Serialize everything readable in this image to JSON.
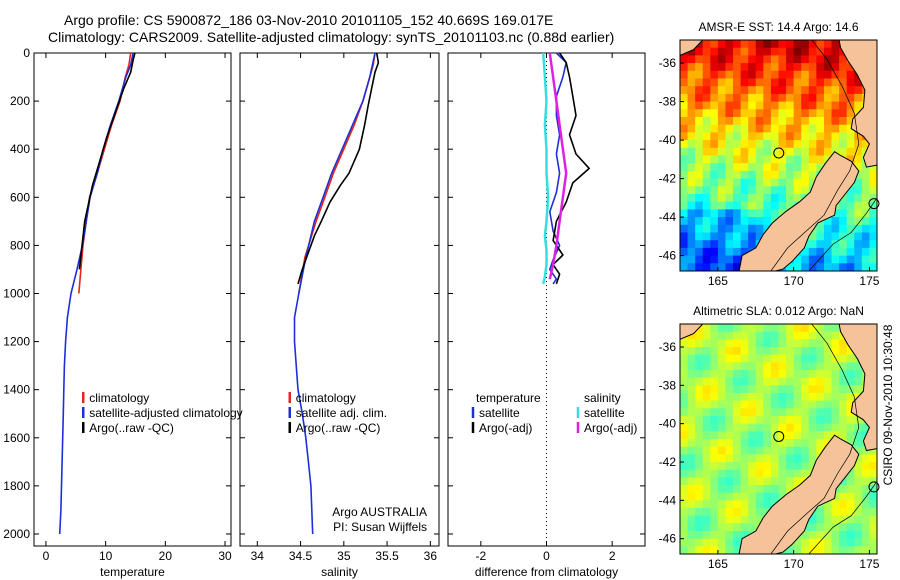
{
  "header": {
    "line1": "Argo profile: CS 5900872_186 03-Nov-2010 20101105_152 40.669S 169.017E",
    "line2": "Climatology: CARS2009. Satellite-adjusted climatology: synTS_20101103.nc (0.88d earlier)"
  },
  "stamp": "CSIRO 09-Nov-2010 10:30:48",
  "colors": {
    "climatology": "#e8241c",
    "satellite": "#1d2fd8",
    "argo": "#000000",
    "sat_salinity": "#33e0e0",
    "argo_salinity": "#e020e0",
    "land": "#f5c29a",
    "coast": "#000000"
  },
  "chart_data": [
    {
      "type": "line",
      "id": "temperature",
      "xlabel": "temperature",
      "ylabel": "",
      "xlim": [
        -2,
        31
      ],
      "ylim": [
        2050,
        0
      ],
      "xticks": [
        0,
        10,
        20,
        30
      ],
      "yticks": [
        0,
        200,
        400,
        600,
        800,
        1000,
        1200,
        1400,
        1600,
        1800,
        2000
      ],
      "legend": [
        "climatology",
        "satellite-adjusted climatology",
        "Argo(..raw -QC)"
      ],
      "series": [
        {
          "name": "climatology",
          "color": "#e8241c",
          "x": [
            14.2,
            13.9,
            13.3,
            12.4,
            11.0,
            9.8,
            8.6,
            7.3,
            6.2,
            5.5
          ],
          "y": [
            0,
            50,
            100,
            200,
            300,
            400,
            500,
            600,
            800,
            1000
          ]
        },
        {
          "name": "satellite-adjusted climatology",
          "color": "#1d2fd8",
          "x": [
            14.6,
            14.2,
            13.4,
            12.2,
            10.8,
            9.6,
            8.6,
            7.4,
            6.1,
            5.2,
            4.2,
            3.6,
            3.3,
            3.1,
            3.0,
            2.9,
            2.8,
            2.7,
            2.6,
            2.5,
            2.4,
            2.3
          ],
          "y": [
            0,
            50,
            100,
            200,
            300,
            400,
            500,
            600,
            800,
            900,
            1000,
            1100,
            1200,
            1300,
            1400,
            1500,
            1600,
            1700,
            1800,
            1900,
            1950,
            2000
          ]
        },
        {
          "name": "Argo(..raw -QC)",
          "color": "#000000",
          "x": [
            14.9,
            14.6,
            14.2,
            13.0,
            11.6,
            10.2,
            9.0,
            7.8,
            6.5,
            5.6
          ],
          "y": [
            0,
            30,
            80,
            150,
            250,
            350,
            450,
            550,
            700,
            900
          ]
        }
      ]
    },
    {
      "type": "line",
      "id": "salinity",
      "xlabel": "salinity",
      "ylabel": "",
      "xlim": [
        33.8,
        36.1
      ],
      "ylim": [
        2050,
        0
      ],
      "xticks": [
        34,
        34.5,
        35,
        35.5,
        36
      ],
      "legend": [
        "climatology",
        "satellite adj. clim.",
        "Argo(..raw -QC)"
      ],
      "annotation": [
        "Argo AUSTRALIA",
        "PI: Susan Wijffels"
      ],
      "series": [
        {
          "name": "climatology",
          "color": "#e8241c",
          "x": [
            35.36,
            35.34,
            35.3,
            35.22,
            35.12,
            35.0,
            34.88,
            34.78,
            34.68,
            34.55,
            34.48
          ],
          "y": [
            0,
            50,
            100,
            200,
            300,
            400,
            500,
            600,
            700,
            850,
            1000
          ]
        },
        {
          "name": "satellite adj. clim.",
          "color": "#1d2fd8",
          "x": [
            35.36,
            35.33,
            35.3,
            35.22,
            35.1,
            34.98,
            34.86,
            34.76,
            34.66,
            34.56,
            34.48,
            34.43,
            34.43,
            34.47,
            34.52,
            34.56,
            34.59,
            34.62,
            34.64
          ],
          "y": [
            0,
            50,
            100,
            200,
            300,
            400,
            500,
            600,
            700,
            850,
            1000,
            1100,
            1200,
            1400,
            1500,
            1600,
            1700,
            1800,
            2000
          ]
        },
        {
          "name": "Argo(..raw -QC)",
          "color": "#000000",
          "x": [
            35.38,
            35.4,
            35.36,
            35.32,
            35.28,
            35.24,
            35.18,
            35.06,
            34.96,
            34.84,
            34.74,
            34.66,
            34.6,
            34.52,
            34.47
          ],
          "y": [
            0,
            40,
            80,
            150,
            220,
            300,
            400,
            500,
            550,
            620,
            700,
            760,
            820,
            900,
            960
          ]
        }
      ]
    },
    {
      "type": "line",
      "id": "difference",
      "xlabel": "difference from climatology",
      "ylabel": "",
      "xlim": [
        -3,
        3
      ],
      "ylim": [
        2050,
        0
      ],
      "xticks": [
        -2,
        0,
        2
      ],
      "legend_temperature": [
        "temperature",
        "satellite",
        "Argo(-adj)"
      ],
      "legend_salinity": [
        "salinity",
        "satellite",
        "Argo(-adj)"
      ],
      "series": [
        {
          "name": "temperature satellite",
          "color": "#1d2fd8",
          "x": [
            0.3,
            0.6,
            0.5,
            0.3,
            0.3,
            0.4,
            0.3,
            0.4,
            0.3,
            0.1,
            0.2,
            0.4,
            0.2,
            0.1,
            0.3,
            0.2
          ],
          "y": [
            0,
            40,
            100,
            180,
            260,
            340,
            420,
            500,
            580,
            660,
            740,
            800,
            860,
            900,
            940,
            960
          ]
        },
        {
          "name": "temperature Argo(-adj)",
          "color": "#000000",
          "x": [
            0.4,
            0.6,
            0.7,
            0.8,
            0.9,
            0.7,
            0.9,
            1.3,
            0.8,
            0.6,
            0.3,
            0.2,
            0.5,
            0.2,
            0.4,
            0.3
          ],
          "y": [
            0,
            40,
            100,
            180,
            260,
            340,
            420,
            480,
            540,
            620,
            700,
            780,
            840,
            880,
            920,
            960
          ]
        },
        {
          "name": "salinity satellite",
          "color": "#33e0e0",
          "x": [
            -0.1,
            -0.05,
            0.0,
            -0.05,
            0.0,
            0.0,
            0.05,
            0.0,
            -0.05,
            0.0,
            0.0,
            -0.05,
            -0.1
          ],
          "y": [
            0,
            100,
            200,
            300,
            400,
            500,
            600,
            700,
            760,
            820,
            880,
            930,
            960
          ]
        },
        {
          "name": "salinity Argo(-adj)",
          "color": "#e020e0",
          "x": [
            0.1,
            0.2,
            0.3,
            0.4,
            0.5,
            0.6,
            0.5,
            0.4,
            0.3,
            0.2,
            0.1
          ],
          "y": [
            0,
            100,
            200,
            300,
            400,
            500,
            600,
            700,
            800,
            880,
            940
          ]
        }
      ]
    },
    {
      "type": "heatmap",
      "id": "sst-map",
      "title": "AMSR-E SST: 14.4 Argo: 14.6",
      "xlim": [
        162.5,
        175.5
      ],
      "ylim": [
        -46.8,
        -34.8
      ],
      "xticks": [
        165,
        170,
        175
      ],
      "yticks": [
        -36,
        -38,
        -40,
        -42,
        -44,
        -46
      ],
      "marker": {
        "lon": 169.017,
        "lat": -40.669
      }
    },
    {
      "type": "heatmap",
      "id": "sla-map",
      "title": "Altimetric SLA: 0.012 Argo: NaN",
      "xlim": [
        162.5,
        175.5
      ],
      "ylim": [
        -46.8,
        -34.8
      ],
      "xticks": [
        165,
        170,
        175
      ],
      "yticks": [
        -36,
        -38,
        -40,
        -42,
        -44,
        -46
      ],
      "marker": {
        "lon": 169.017,
        "lat": -40.669
      }
    }
  ]
}
